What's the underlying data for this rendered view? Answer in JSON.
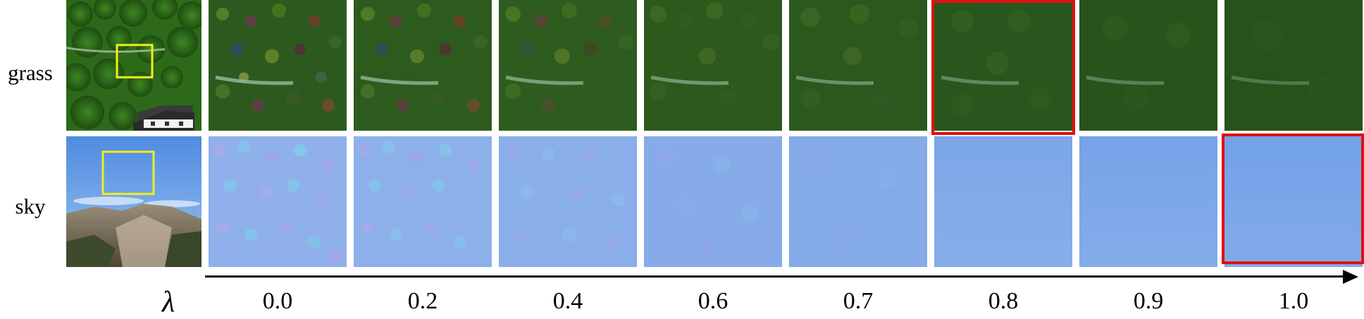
{
  "rows": [
    {
      "label": "grass"
    },
    {
      "label": "sky"
    }
  ],
  "axis": {
    "symbol": "λ",
    "ticks": [
      "0.0",
      "0.2",
      "0.4",
      "0.6",
      "0.7",
      "0.8",
      "0.9",
      "1.0"
    ]
  },
  "highlights": {
    "grass_selected_lambda": "0.8",
    "sky_selected_lambda": "1.0",
    "highlight_color": "#e01010",
    "crop_box_color": "#f2ef1a"
  }
}
